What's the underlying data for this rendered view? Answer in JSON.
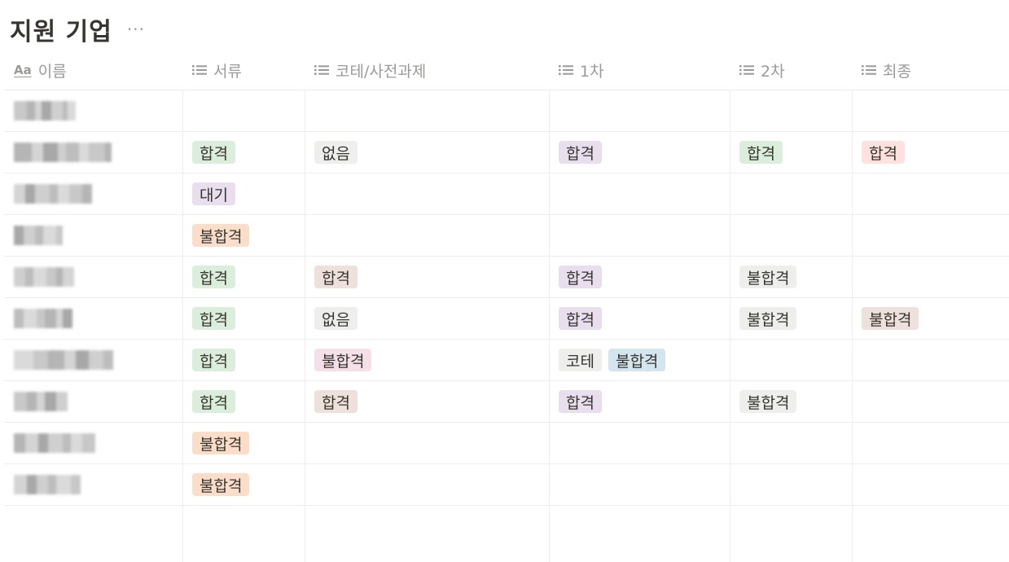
{
  "page": {
    "title": "지원 기업",
    "more_glyph": "···"
  },
  "columns": [
    {
      "key": "name",
      "label": "이름",
      "icon": "aa-title-icon"
    },
    {
      "key": "doc",
      "label": "서류",
      "icon": "list-icon"
    },
    {
      "key": "test",
      "label": "코테/사전과제",
      "icon": "list-icon"
    },
    {
      "key": "r1",
      "label": "1차",
      "icon": "list-icon"
    },
    {
      "key": "r2",
      "label": "2차",
      "icon": "list-icon"
    },
    {
      "key": "final",
      "label": "최종",
      "icon": "list-icon"
    }
  ],
  "title_icon_text": "Aa",
  "colors": {
    "green": "#dbeddb",
    "gray": "#eeeeec",
    "purple": "#e8deee",
    "red": "#ffe2dd",
    "orange": "#fadec9",
    "brown": "#eee0da",
    "pink": "#f5e0e9",
    "blue": "#d3e5ef",
    "header_text": "#9b9a97",
    "text": "#37352f"
  },
  "rows": [
    {
      "doc": [],
      "test": [],
      "r1": [],
      "r2": [],
      "final": []
    },
    {
      "doc": [
        {
          "text": "합격",
          "color": "green"
        }
      ],
      "test": [
        {
          "text": "없음",
          "color": "gray"
        }
      ],
      "r1": [
        {
          "text": "합격",
          "color": "purple"
        }
      ],
      "r2": [
        {
          "text": "합격",
          "color": "green"
        }
      ],
      "final": [
        {
          "text": "합격",
          "color": "red"
        }
      ]
    },
    {
      "doc": [
        {
          "text": "대기",
          "color": "purple"
        }
      ],
      "test": [],
      "r1": [],
      "r2": [],
      "final": []
    },
    {
      "doc": [
        {
          "text": "불합격",
          "color": "orange"
        }
      ],
      "test": [],
      "r1": [],
      "r2": [],
      "final": []
    },
    {
      "doc": [
        {
          "text": "합격",
          "color": "green"
        }
      ],
      "test": [
        {
          "text": "합격",
          "color": "brown"
        }
      ],
      "r1": [
        {
          "text": "합격",
          "color": "purple"
        }
      ],
      "r2": [
        {
          "text": "불합격",
          "color": "gray"
        }
      ],
      "final": []
    },
    {
      "doc": [
        {
          "text": "합격",
          "color": "green"
        }
      ],
      "test": [
        {
          "text": "없음",
          "color": "gray"
        }
      ],
      "r1": [
        {
          "text": "합격",
          "color": "purple"
        }
      ],
      "r2": [
        {
          "text": "불합격",
          "color": "gray"
        }
      ],
      "final": [
        {
          "text": "불합격",
          "color": "brown"
        }
      ]
    },
    {
      "doc": [
        {
          "text": "합격",
          "color": "green"
        }
      ],
      "test": [
        {
          "text": "불합격",
          "color": "pink"
        }
      ],
      "r1": [
        {
          "text": "코테",
          "color": "gray"
        },
        {
          "text": "불합격",
          "color": "blue"
        }
      ],
      "r2": [],
      "final": []
    },
    {
      "doc": [
        {
          "text": "합격",
          "color": "green"
        }
      ],
      "test": [
        {
          "text": "합격",
          "color": "brown"
        }
      ],
      "r1": [
        {
          "text": "합격",
          "color": "purple"
        }
      ],
      "r2": [
        {
          "text": "불합격",
          "color": "gray"
        }
      ],
      "final": []
    },
    {
      "doc": [
        {
          "text": "불합격",
          "color": "orange"
        }
      ],
      "test": [],
      "r1": [],
      "r2": [],
      "final": []
    },
    {
      "doc": [
        {
          "text": "불합격",
          "color": "orange"
        }
      ],
      "test": [],
      "r1": [],
      "r2": [],
      "final": []
    }
  ]
}
